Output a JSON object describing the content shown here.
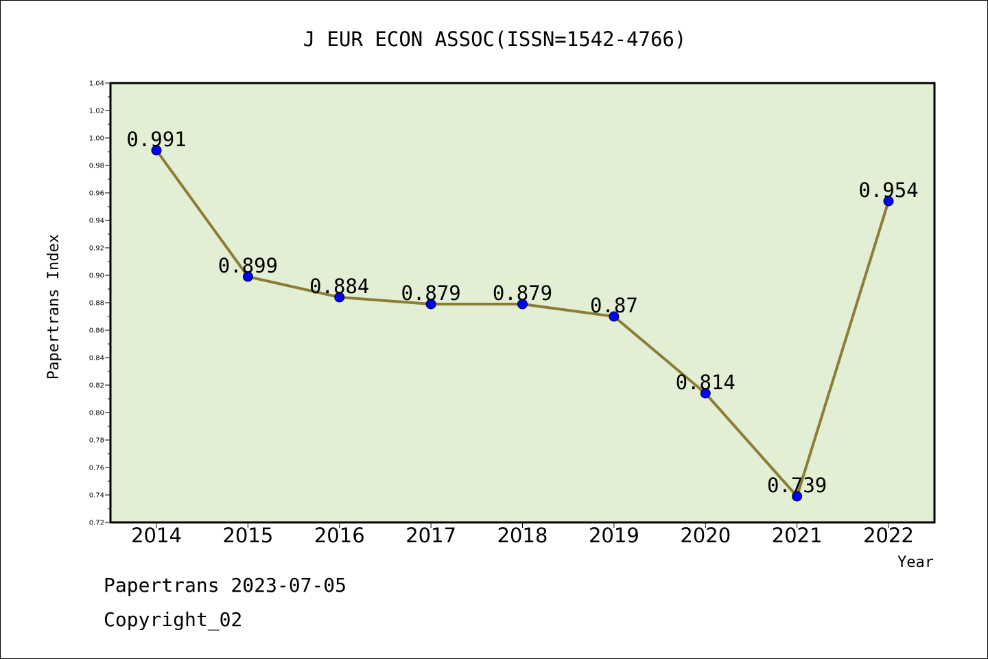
{
  "chart_data": {
    "type": "line",
    "title": "J EUR ECON ASSOC(ISSN=1542-4766)",
    "xlabel": "Year",
    "ylabel": "Papertrans Index",
    "categories": [
      "2014",
      "2015",
      "2016",
      "2017",
      "2018",
      "2019",
      "2020",
      "2021",
      "2022"
    ],
    "series": [
      {
        "values": [
          0.991,
          0.899,
          0.884,
          0.879,
          0.879,
          0.87,
          0.814,
          0.739,
          0.954
        ],
        "labels": [
          "0.991",
          "0.899",
          "0.884",
          "0.879",
          "0.879",
          "0.87",
          "0.814",
          "0.739",
          "0.954"
        ]
      }
    ],
    "ylim": [
      0.72,
      1.04
    ],
    "yticks": [
      "0.72",
      "0.74",
      "0.76",
      "0.78",
      "0.80",
      "0.82",
      "0.84",
      "0.86",
      "0.88",
      "0.90",
      "0.92",
      "0.94",
      "0.96",
      "0.98",
      "1.00",
      "1.02",
      "1.04"
    ],
    "grid": false,
    "legend": "none",
    "colors": {
      "plot_background": "#e2efd5",
      "line": "#8b7d35",
      "marker": "#0000ff"
    }
  },
  "footer": {
    "line1": "Papertrans 2023-07-05",
    "line2": "Copyright_02"
  }
}
